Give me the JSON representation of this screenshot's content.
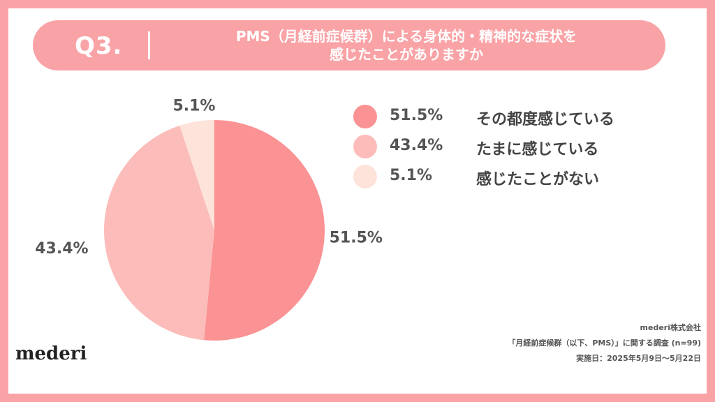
{
  "header": {
    "question_number": "Q3.",
    "question_line1": "PMS（月経前症候群）による身体的・精神的な症状を",
    "question_line2": "感じたことがありますか"
  },
  "chart_data": {
    "type": "pie",
    "slices": [
      {
        "label": "その都度感じている",
        "value": 51.5,
        "display": "51.5%",
        "color": "#fb9294"
      },
      {
        "label": "たまに感じている",
        "value": 43.4,
        "display": "43.4%",
        "color": "#fcbcb9"
      },
      {
        "label": "感じたことがない",
        "value": 5.1,
        "display": "5.1%",
        "color": "#fde3da"
      }
    ],
    "legend_position": "right"
  },
  "footer": {
    "company": "mederi株式会社",
    "survey": "「月経前症候群（以下、PMS）」に関する調査 (n=99)",
    "period": "実施日：2025年5月9日〜5月22日"
  },
  "brand": {
    "logo": "mederi",
    "frame_color": "#f9a3a6"
  }
}
